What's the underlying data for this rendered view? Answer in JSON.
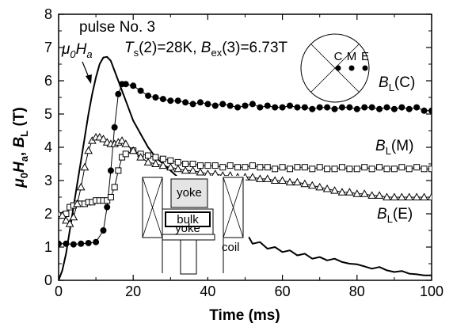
{
  "chart_data": {
    "type": "line",
    "xlabel": "Time (ms)",
    "ylabel_parts": [
      "μ",
      "0",
      "H",
      "a",
      ", ",
      "B",
      "L",
      " (T)"
    ],
    "xlim": [
      0,
      100
    ],
    "ylim": [
      0,
      8
    ],
    "x_ticks": [
      0,
      20,
      40,
      60,
      80,
      100
    ],
    "y_ticks": [
      0,
      1,
      2,
      3,
      4,
      5,
      6,
      7,
      8
    ],
    "x_tick_labels": [
      "0",
      "20",
      "40",
      "60",
      "80",
      "100"
    ],
    "y_tick_labels": [
      "0",
      "1",
      "2",
      "3",
      "4",
      "5",
      "6",
      "7",
      "8"
    ],
    "grid": false,
    "annotations": {
      "pulse": "pulse No. 3",
      "mu0ha": {
        "a": "μ",
        "b": "0",
        "c": "H",
        "d": "a"
      },
      "ts": {
        "a": "T",
        "b": "s",
        "c": "(2)=28K, ",
        "d": "B",
        "e": "ex",
        "f": "(3)=6.73T"
      },
      "label_c": {
        "a": "B",
        "b": "L",
        "c": "(C)"
      },
      "label_m": {
        "a": "B",
        "b": "L",
        "c": "(M)"
      },
      "label_e": {
        "a": "B",
        "b": "L",
        "c": "(E)"
      }
    },
    "inset_circle": {
      "labels": [
        "C",
        "M",
        "E"
      ]
    },
    "inset_setup": {
      "yoke_top": "yoke",
      "bulk": "bulk",
      "yoke_bottom": "yoke",
      "coil": "coil"
    },
    "series": [
      {
        "marker": "line",
        "color": "#000000",
        "x": [
          0,
          1,
          2,
          3,
          4,
          5,
          6,
          7,
          8,
          9,
          10,
          11,
          12,
          13,
          14,
          15,
          16,
          17,
          18,
          19,
          20,
          21,
          22,
          23,
          24,
          25,
          26,
          27,
          28,
          29,
          30,
          31,
          32
        ],
        "y": [
          0,
          0.3,
          0.8,
          1.5,
          2.2,
          2.9,
          3.6,
          4.3,
          5.0,
          5.6,
          6.1,
          6.5,
          6.7,
          6.72,
          6.6,
          6.3,
          6.0,
          5.7,
          5.4,
          5.1,
          4.8,
          4.6,
          4.4,
          4.2,
          4.0,
          3.85,
          3.7,
          3.6,
          3.5,
          3.4,
          3.3,
          3.2,
          3.1
        ]
      },
      {
        "marker": "line",
        "color": "#000000",
        "x": [
          51,
          52,
          54,
          56,
          58,
          60,
          62,
          64,
          66,
          68,
          70,
          72,
          74,
          76,
          78,
          80,
          82,
          84,
          86,
          88,
          90,
          92,
          94,
          96,
          98,
          100
        ],
        "y": [
          1.3,
          1.1,
          1.15,
          0.95,
          1.0,
          0.85,
          0.9,
          0.75,
          0.8,
          0.65,
          0.7,
          0.6,
          0.65,
          0.55,
          0.5,
          0.48,
          0.42,
          0.35,
          0.4,
          0.3,
          0.25,
          0.28,
          0.2,
          0.18,
          0.15,
          0.15
        ]
      },
      {
        "marker": "filled-circle",
        "color": "#000000",
        "x": [
          0,
          2,
          4,
          6,
          8,
          10,
          12,
          13,
          14,
          15,
          16,
          17,
          18,
          20,
          22,
          24,
          26,
          28,
          30,
          32,
          34,
          36,
          38,
          40,
          42,
          44,
          46,
          48,
          50,
          52,
          54,
          56,
          58,
          60,
          62,
          64,
          66,
          68,
          70,
          72,
          74,
          76,
          78,
          80,
          82,
          84,
          86,
          88,
          90,
          92,
          94,
          96,
          98,
          100
        ],
        "y": [
          1.1,
          1.1,
          1.08,
          1.1,
          1.12,
          1.15,
          1.5,
          2.2,
          3.3,
          4.6,
          5.6,
          5.9,
          5.9,
          5.85,
          5.7,
          5.55,
          5.5,
          5.45,
          5.4,
          5.4,
          5.35,
          5.3,
          5.35,
          5.3,
          5.25,
          5.3,
          5.25,
          5.2,
          5.25,
          5.3,
          5.2,
          5.25,
          5.2,
          5.2,
          5.25,
          5.2,
          5.2,
          5.15,
          5.2,
          5.2,
          5.15,
          5.2,
          5.2,
          5.15,
          5.2,
          5.2,
          5.15,
          5.2,
          5.15,
          5.2,
          5.15,
          5.2,
          5.1,
          5.1
        ]
      },
      {
        "marker": "open-square",
        "color": "#000000",
        "x": [
          0,
          1,
          2,
          3,
          4,
          5,
          6,
          7,
          8,
          9,
          10,
          11,
          12,
          13,
          14,
          15,
          16,
          17,
          18,
          20,
          22,
          24,
          26,
          28,
          30,
          32,
          34,
          36,
          38,
          40,
          42,
          44,
          46,
          48,
          50,
          52,
          54,
          56,
          58,
          60,
          62,
          64,
          66,
          68,
          70,
          72,
          74,
          76,
          78,
          80,
          82,
          84,
          86,
          88,
          90,
          92,
          94,
          96,
          98,
          100
        ],
        "y": [
          1.95,
          1.95,
          2.0,
          2.2,
          2.25,
          2.3,
          2.3,
          2.3,
          2.35,
          2.35,
          2.4,
          2.4,
          2.4,
          2.4,
          2.5,
          2.8,
          3.3,
          3.7,
          3.8,
          3.9,
          3.8,
          3.75,
          3.7,
          3.65,
          3.6,
          3.55,
          3.5,
          3.5,
          3.45,
          3.45,
          3.45,
          3.4,
          3.45,
          3.4,
          3.4,
          3.45,
          3.4,
          3.4,
          3.35,
          3.4,
          3.35,
          3.4,
          3.4,
          3.35,
          3.4,
          3.35,
          3.35,
          3.4,
          3.35,
          3.35,
          3.4,
          3.35,
          3.4,
          3.35,
          3.35,
          3.4,
          3.35,
          3.4,
          3.35,
          3.35
        ]
      },
      {
        "marker": "open-triangle",
        "color": "#000000",
        "x": [
          0,
          1,
          2,
          3,
          4,
          5,
          6,
          7,
          8,
          9,
          10,
          11,
          12,
          13,
          14,
          15,
          16,
          17,
          18,
          20,
          22,
          24,
          26,
          28,
          30,
          32,
          34,
          36,
          38,
          40,
          42,
          44,
          46,
          48,
          50,
          52,
          54,
          56,
          58,
          60,
          62,
          64,
          66,
          68,
          70,
          72,
          74,
          76,
          78,
          80,
          82,
          84,
          86,
          88,
          90,
          92,
          94,
          96,
          98,
          100
        ],
        "y": [
          2.0,
          1.95,
          1.8,
          1.7,
          1.9,
          2.3,
          2.8,
          3.4,
          3.9,
          4.2,
          4.3,
          4.3,
          4.25,
          4.15,
          4.1,
          4.1,
          4.15,
          4.2,
          4.1,
          3.9,
          3.7,
          3.55,
          3.5,
          3.45,
          3.4,
          3.35,
          3.3,
          3.3,
          3.25,
          3.2,
          3.2,
          3.15,
          3.15,
          3.1,
          3.1,
          3.1,
          3.05,
          3.05,
          3.0,
          3.0,
          2.95,
          2.95,
          2.9,
          2.85,
          2.8,
          2.75,
          2.7,
          2.65,
          2.65,
          2.6,
          2.6,
          2.55,
          2.55,
          2.5,
          2.5,
          2.5,
          2.5,
          2.5,
          2.5,
          2.5
        ]
      }
    ]
  }
}
